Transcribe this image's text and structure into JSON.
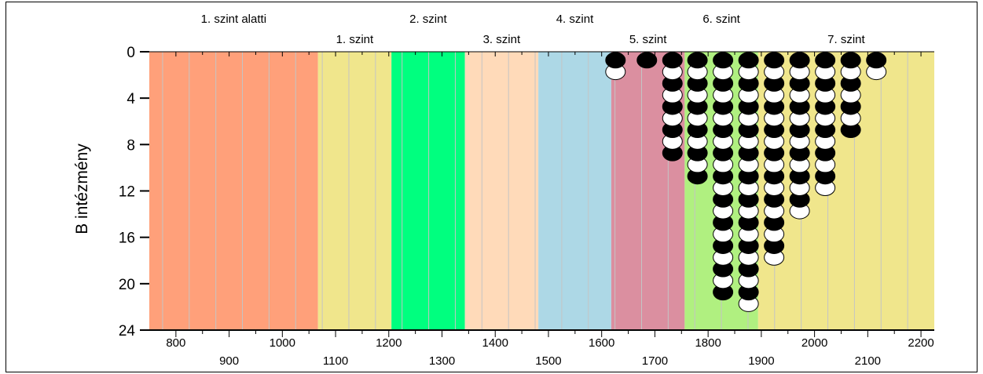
{
  "chart_data": {
    "type": "scatter",
    "ylabel": "B intézmény",
    "xlim": [
      750,
      2225
    ],
    "ylim": [
      0,
      24
    ],
    "y_inverted": true,
    "x_ticks_row1": [
      800,
      1000,
      1200,
      1400,
      1600,
      1800,
      2000,
      2200
    ],
    "x_ticks_row2": [
      900,
      1100,
      1300,
      1500,
      1700,
      1900,
      2100
    ],
    "y_ticks": [
      0,
      4,
      8,
      12,
      16,
      20,
      24
    ],
    "minor_x_step": 25,
    "bands": [
      {
        "label": "1. szint alatti",
        "from": 750,
        "to": 1067,
        "color": "#FFA07A",
        "label_row": 1
      },
      {
        "label": "1. szint",
        "from": 1067,
        "to": 1205,
        "color": "#F0E68C",
        "label_row": 2
      },
      {
        "label": "2. szint",
        "from": 1205,
        "to": 1343,
        "color": "#00FF7F",
        "label_row": 1
      },
      {
        "label": "3. szint",
        "from": 1343,
        "to": 1481,
        "color": "#FFDAB9",
        "label_row": 2
      },
      {
        "label": "4. szint",
        "from": 1481,
        "to": 1618,
        "color": "#ADD8E6",
        "label_row": 1
      },
      {
        "label": "5. szint",
        "from": 1618,
        "to": 1756,
        "color": "#DB8FA0",
        "label_row": 2
      },
      {
        "label": "6. szint",
        "from": 1756,
        "to": 1894,
        "color": "#B0F080",
        "label_row": 1
      },
      {
        "label": "7. szint",
        "from": 1894,
        "to": 2225,
        "color": "#F0E68C",
        "label_row": 2
      }
    ],
    "columns": [
      {
        "x": 1626,
        "count": 2
      },
      {
        "x": 1685,
        "count": 1
      },
      {
        "x": 1733,
        "count": 9
      },
      {
        "x": 1780,
        "count": 11
      },
      {
        "x": 1828,
        "count": 21
      },
      {
        "x": 1876,
        "count": 22
      },
      {
        "x": 1924,
        "count": 18
      },
      {
        "x": 1972,
        "count": 14
      },
      {
        "x": 2020,
        "count": 12
      },
      {
        "x": 2068,
        "count": 7
      },
      {
        "x": 2116,
        "count": 2
      }
    ],
    "marker_colors": {
      "odd": "#000000",
      "even": "#ffffff",
      "stroke": "#000000"
    }
  }
}
